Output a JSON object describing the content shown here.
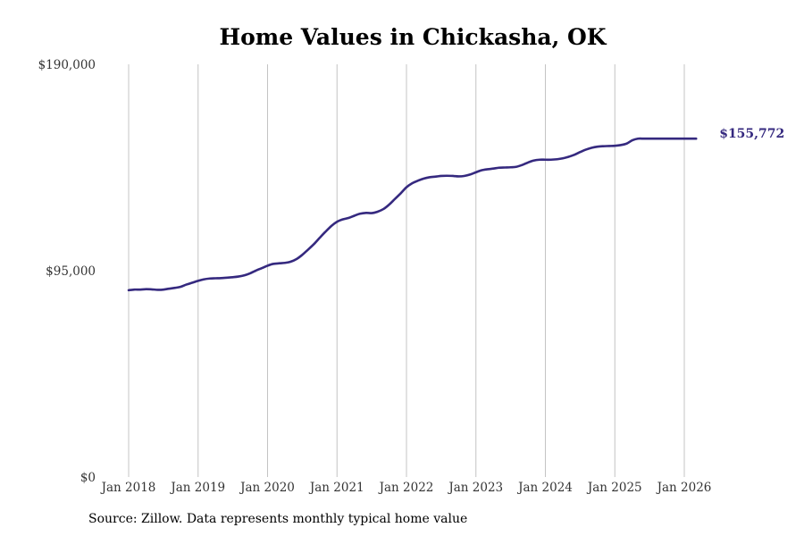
{
  "chart_data": {
    "type": "line",
    "title": "Home Values in Chickasha, OK",
    "xlabel": "",
    "ylabel": "",
    "xlim": [
      2018.0,
      2026.17
    ],
    "ylim": [
      0,
      190000
    ],
    "grid": "vertical",
    "x_ticks": [
      {
        "value": 2018,
        "label": "Jan 2018"
      },
      {
        "value": 2019,
        "label": "Jan 2019"
      },
      {
        "value": 2020,
        "label": "Jan 2020"
      },
      {
        "value": 2021,
        "label": "Jan 2021"
      },
      {
        "value": 2022,
        "label": "Jan 2022"
      },
      {
        "value": 2023,
        "label": "Jan 2023"
      },
      {
        "value": 2024,
        "label": "Jan 2024"
      },
      {
        "value": 2025,
        "label": "Jan 2025"
      },
      {
        "value": 2026,
        "label": "Jan 2026"
      }
    ],
    "y_ticks": [
      {
        "value": 0,
        "label": "$0"
      },
      {
        "value": 95000,
        "label": "$95,000"
      },
      {
        "value": 190000,
        "label": "$190,000"
      }
    ],
    "series": [
      {
        "name": "Typical home value",
        "color": "#35297f",
        "end_label": "$155,772",
        "x": [
          2018.0,
          2018.08,
          2018.17,
          2018.25,
          2018.33,
          2018.42,
          2018.5,
          2018.58,
          2018.67,
          2018.75,
          2018.83,
          2018.92,
          2019.0,
          2019.08,
          2019.17,
          2019.25,
          2019.33,
          2019.42,
          2019.5,
          2019.58,
          2019.67,
          2019.75,
          2019.83,
          2019.92,
          2020.0,
          2020.08,
          2020.17,
          2020.25,
          2020.33,
          2020.42,
          2020.5,
          2020.58,
          2020.67,
          2020.75,
          2020.83,
          2020.92,
          2021.0,
          2021.08,
          2021.17,
          2021.25,
          2021.33,
          2021.42,
          2021.5,
          2021.58,
          2021.67,
          2021.75,
          2021.83,
          2021.92,
          2022.0,
          2022.08,
          2022.17,
          2022.25,
          2022.33,
          2022.42,
          2022.5,
          2022.58,
          2022.67,
          2022.75,
          2022.83,
          2022.92,
          2023.0,
          2023.08,
          2023.17,
          2023.25,
          2023.33,
          2023.42,
          2023.5,
          2023.58,
          2023.67,
          2023.75,
          2023.83,
          2023.92,
          2024.0,
          2024.08,
          2024.17,
          2024.25,
          2024.33,
          2024.42,
          2024.5,
          2024.58,
          2024.67,
          2024.75,
          2024.83,
          2024.92,
          2025.0,
          2025.08,
          2025.17,
          2025.25,
          2025.33,
          2025.42,
          2025.5,
          2025.58,
          2025.67,
          2025.75,
          2025.83,
          2025.92,
          2026.0,
          2026.08,
          2026.17
        ],
        "values": [
          86000,
          86300,
          86300,
          86500,
          86400,
          86200,
          86300,
          86700,
          87100,
          87600,
          88600,
          89500,
          90300,
          91000,
          91400,
          91500,
          91600,
          91800,
          92000,
          92300,
          92900,
          93800,
          95000,
          96200,
          97300,
          98100,
          98400,
          98600,
          99100,
          100400,
          102300,
          104600,
          107300,
          110100,
          112800,
          115600,
          117500,
          118600,
          119300,
          120300,
          121200,
          121600,
          121500,
          122100,
          123400,
          125400,
          127900,
          130700,
          133400,
          135200,
          136500,
          137400,
          138000,
          138300,
          138600,
          138700,
          138600,
          138400,
          138600,
          139300,
          140300,
          141200,
          141700,
          142000,
          142400,
          142500,
          142600,
          142800,
          143700,
          144800,
          145700,
          146100,
          146100,
          146100,
          146300,
          146700,
          147400,
          148400,
          149600,
          150700,
          151600,
          152100,
          152300,
          152400,
          152500,
          152800,
          153500,
          155000,
          155772,
          155772,
          155772,
          155772,
          155772,
          155772,
          155772,
          155772,
          155772,
          155772,
          155772
        ]
      }
    ]
  },
  "source": "Source: Zillow. Data represents monthly typical home value"
}
